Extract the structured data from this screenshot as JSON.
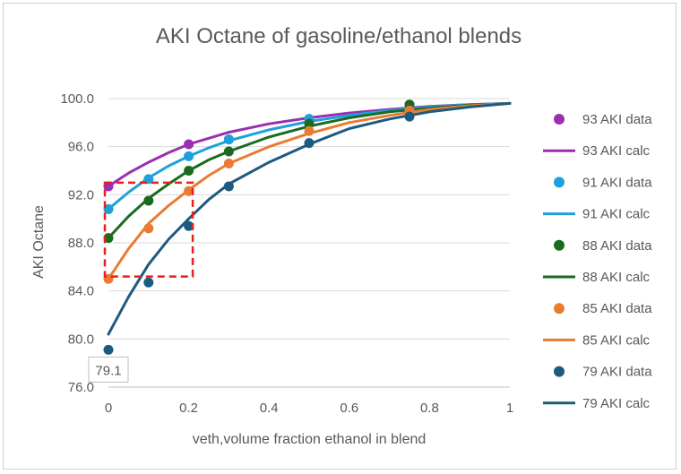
{
  "chart_data": {
    "type": "line",
    "title": "AKI Octane of gasoline/ethanol blends",
    "xlabel": "veth,volume fraction ethanol in blend",
    "ylabel": "AKI Octane",
    "xlim": [
      0,
      1
    ],
    "ylim": [
      76,
      100
    ],
    "x_ticks": [
      "0",
      "0.2",
      "0.4",
      "0.6",
      "0.8",
      "1"
    ],
    "y_ticks": [
      "76.0",
      "80.0",
      "84.0",
      "88.0",
      "92.0",
      "96.0",
      "100.0"
    ],
    "grid": "horizontal",
    "legend_position": "right",
    "series": [
      {
        "name": "93 AKI data",
        "kind": "points",
        "color": "#9b2fae",
        "x": [
          0,
          0.2,
          0.3,
          0.5,
          0.75
        ],
        "y": [
          92.7,
          96.2,
          96.6,
          98.3,
          99.5
        ]
      },
      {
        "name": "93 AKI calc",
        "kind": "line",
        "color": "#9b2fae",
        "x": [
          0,
          0.05,
          0.1,
          0.15,
          0.2,
          0.25,
          0.3,
          0.4,
          0.5,
          0.6,
          0.7,
          0.8,
          0.9,
          1.0
        ],
        "y": [
          92.7,
          93.8,
          94.7,
          95.5,
          96.2,
          96.7,
          97.2,
          97.9,
          98.4,
          98.8,
          99.1,
          99.35,
          99.5,
          99.6
        ]
      },
      {
        "name": "91 AKI data",
        "kind": "points",
        "color": "#1da1dc",
        "x": [
          0,
          0.1,
          0.2,
          0.3,
          0.5,
          0.75
        ],
        "y": [
          90.8,
          93.3,
          95.2,
          96.6,
          98.3,
          99.1
        ]
      },
      {
        "name": "91 AKI calc",
        "kind": "line",
        "color": "#1da1dc",
        "x": [
          0,
          0.05,
          0.1,
          0.15,
          0.2,
          0.25,
          0.3,
          0.4,
          0.5,
          0.6,
          0.7,
          0.8,
          0.9,
          1.0
        ],
        "y": [
          90.8,
          92.2,
          93.4,
          94.4,
          95.2,
          95.9,
          96.5,
          97.4,
          98.1,
          98.6,
          99.0,
          99.3,
          99.5,
          99.6
        ]
      },
      {
        "name": "88 AKI data",
        "kind": "points",
        "color": "#1a6b1f",
        "x": [
          0,
          0.1,
          0.2,
          0.3,
          0.5,
          0.75
        ],
        "y": [
          88.4,
          91.5,
          94.0,
          95.6,
          97.9,
          99.5
        ]
      },
      {
        "name": "88 AKI calc",
        "kind": "line",
        "color": "#1a6b1f",
        "x": [
          0,
          0.05,
          0.1,
          0.15,
          0.2,
          0.25,
          0.3,
          0.4,
          0.5,
          0.6,
          0.7,
          0.8,
          0.9,
          1.0
        ],
        "y": [
          88.4,
          90.2,
          91.7,
          92.9,
          94.0,
          94.9,
          95.6,
          96.8,
          97.7,
          98.4,
          98.9,
          99.2,
          99.45,
          99.6
        ]
      },
      {
        "name": "85 AKI data",
        "kind": "points",
        "color": "#ea7b33",
        "x": [
          0,
          0.1,
          0.2,
          0.3,
          0.5,
          0.75
        ],
        "y": [
          85.0,
          89.2,
          92.3,
          94.6,
          97.3,
          99.0
        ]
      },
      {
        "name": "85 AKI calc",
        "kind": "line",
        "color": "#ea7b33",
        "x": [
          0,
          0.05,
          0.1,
          0.15,
          0.2,
          0.25,
          0.3,
          0.4,
          0.5,
          0.6,
          0.7,
          0.8,
          0.9,
          1.0
        ],
        "y": [
          85.0,
          87.5,
          89.6,
          91.1,
          92.4,
          93.6,
          94.6,
          96.0,
          97.1,
          98.0,
          98.6,
          99.1,
          99.4,
          99.6
        ]
      },
      {
        "name": "79 AKI data",
        "kind": "points",
        "color": "#1d5a7f",
        "x": [
          0,
          0.1,
          0.2,
          0.3,
          0.5,
          0.75
        ],
        "y": [
          79.1,
          84.7,
          89.4,
          92.7,
          96.3,
          98.5
        ]
      },
      {
        "name": "79 AKI calc",
        "kind": "line",
        "color": "#1d5a7f",
        "x": [
          0,
          0.05,
          0.1,
          0.15,
          0.2,
          0.25,
          0.3,
          0.4,
          0.5,
          0.6,
          0.7,
          0.8,
          0.9,
          1.0
        ],
        "y": [
          80.4,
          83.5,
          86.2,
          88.3,
          90.0,
          91.6,
          92.9,
          94.7,
          96.2,
          97.5,
          98.3,
          98.9,
          99.3,
          99.6
        ]
      }
    ],
    "annotations": [
      {
        "type": "label",
        "text": "79.1",
        "x": 0,
        "y": 79.1
      },
      {
        "type": "dashed-box",
        "color": "#e81f1f",
        "x_range": [
          0,
          0.21
        ],
        "y_range": [
          85.2,
          93.0
        ]
      }
    ]
  }
}
